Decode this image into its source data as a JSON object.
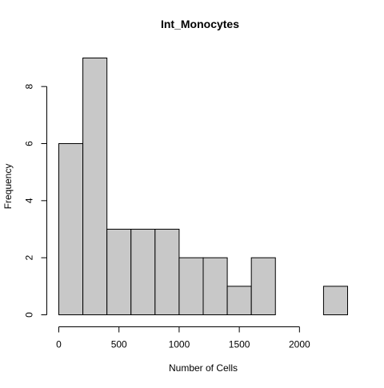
{
  "chart_data": {
    "type": "bar",
    "title": "Int_Monocytes",
    "xlabel": "Number of Cells",
    "ylabel": "Frequency",
    "bins": [
      {
        "x0": 0,
        "x1": 200,
        "count": 6
      },
      {
        "x0": 200,
        "x1": 400,
        "count": 9
      },
      {
        "x0": 400,
        "x1": 600,
        "count": 3
      },
      {
        "x0": 600,
        "x1": 800,
        "count": 3
      },
      {
        "x0": 800,
        "x1": 1000,
        "count": 3
      },
      {
        "x0": 1000,
        "x1": 1200,
        "count": 2
      },
      {
        "x0": 1200,
        "x1": 1400,
        "count": 2
      },
      {
        "x0": 1400,
        "x1": 1600,
        "count": 1
      },
      {
        "x0": 1600,
        "x1": 1800,
        "count": 2
      },
      {
        "x0": 1800,
        "x1": 2000,
        "count": 0
      },
      {
        "x0": 2000,
        "x1": 2200,
        "count": 0
      },
      {
        "x0": 2200,
        "x1": 2400,
        "count": 1
      }
    ],
    "xlim": [
      0,
      2400
    ],
    "ylim": [
      0,
      9
    ],
    "x_ticks": [
      0,
      500,
      1000,
      1500,
      2000
    ],
    "x_tick_labels": [
      "0",
      "500",
      "1000",
      "1500",
      "2000"
    ],
    "y_ticks": [
      0,
      2,
      4,
      6,
      8
    ],
    "y_tick_labels": [
      "0",
      "2",
      "4",
      "6",
      "8"
    ],
    "bar_fill": "#c8c8c8",
    "bar_stroke": "#000000",
    "grid": false,
    "legend": "none"
  }
}
